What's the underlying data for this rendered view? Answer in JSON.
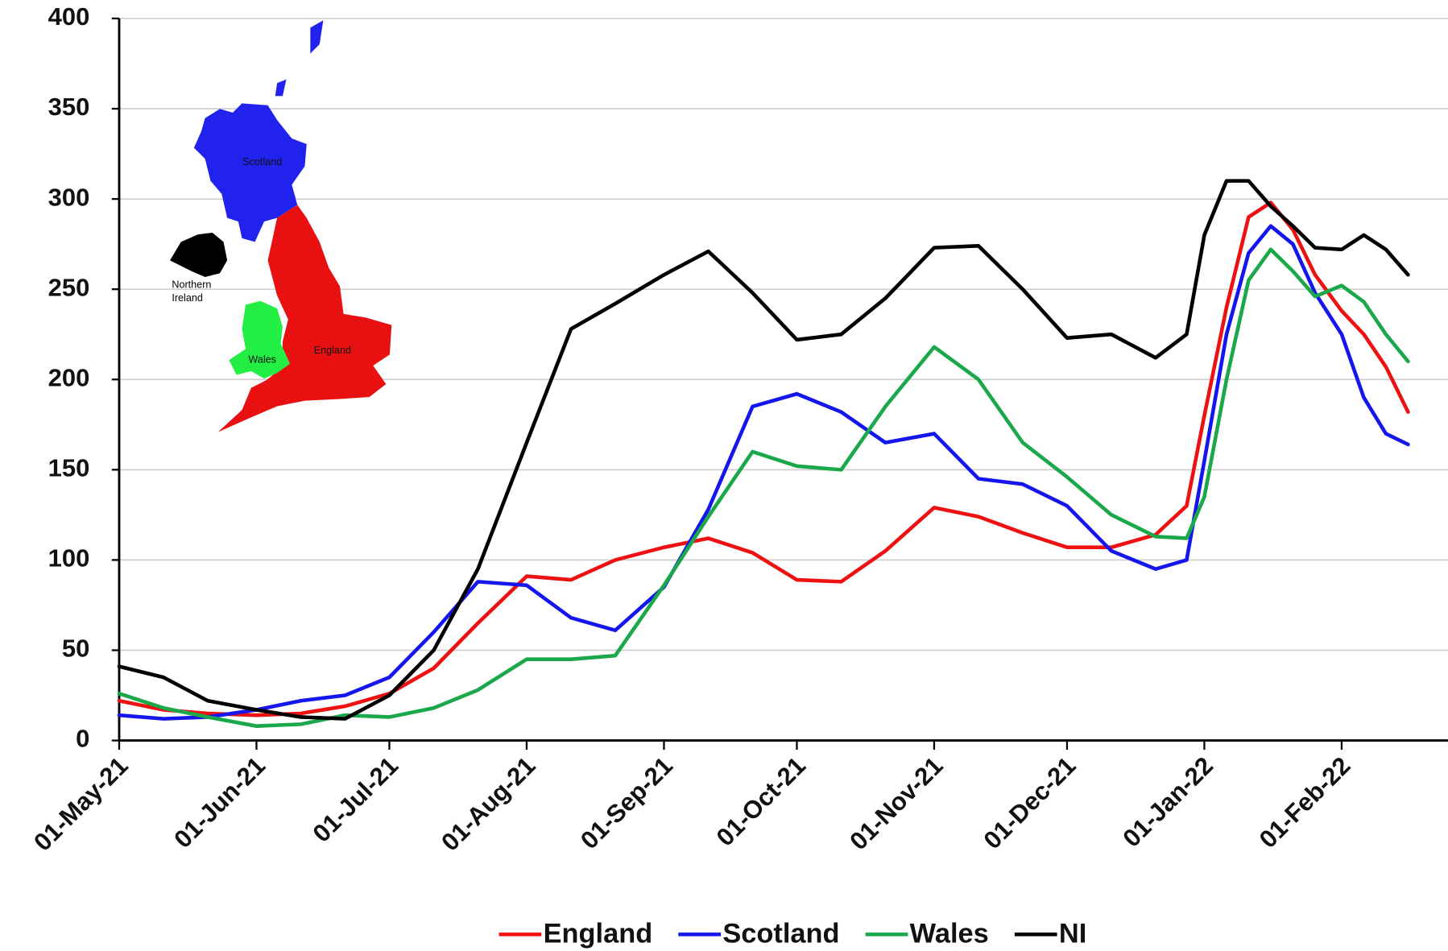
{
  "chart_data": {
    "type": "line",
    "x": [
      "2021-05-01",
      "2021-05-11",
      "2021-05-21",
      "2021-06-01",
      "2021-06-11",
      "2021-06-21",
      "2021-07-01",
      "2021-07-11",
      "2021-07-21",
      "2021-08-01",
      "2021-08-11",
      "2021-08-21",
      "2021-09-01",
      "2021-09-11",
      "2021-09-21",
      "2021-10-01",
      "2021-10-11",
      "2021-10-21",
      "2021-11-01",
      "2021-11-11",
      "2021-11-21",
      "2021-12-01",
      "2021-12-11",
      "2021-12-21",
      "2021-12-28",
      "2022-01-01",
      "2022-01-06",
      "2022-01-11",
      "2022-01-16",
      "2022-01-21",
      "2022-01-26",
      "2022-02-01",
      "2022-02-06",
      "2022-02-11",
      "2022-02-16"
    ],
    "series": [
      {
        "name": "England",
        "color": "#ee1111",
        "values": [
          22,
          17,
          15,
          14,
          15,
          19,
          26,
          40,
          65,
          91,
          89,
          100,
          107,
          112,
          104,
          89,
          88,
          105,
          129,
          124,
          115,
          107,
          107,
          114,
          130,
          180,
          240,
          290,
          298,
          283,
          258,
          238,
          225,
          207,
          182
        ]
      },
      {
        "name": "Scotland",
        "color": "#1515ee",
        "values": [
          14,
          12,
          13,
          17,
          22,
          25,
          35,
          60,
          88,
          86,
          68,
          61,
          85,
          128,
          185,
          192,
          182,
          165,
          170,
          145,
          142,
          130,
          105,
          95,
          100,
          155,
          225,
          270,
          285,
          275,
          248,
          225,
          190,
          170,
          164
        ]
      },
      {
        "name": "Wales",
        "color": "#1aa84a",
        "values": [
          26,
          18,
          13,
          8,
          9,
          14,
          13,
          18,
          28,
          45,
          45,
          47,
          86,
          124,
          160,
          152,
          150,
          185,
          218,
          200,
          165,
          146,
          125,
          113,
          112,
          135,
          200,
          255,
          272,
          260,
          246,
          252,
          243,
          225,
          210
        ]
      },
      {
        "name": "NI",
        "color": "#000000",
        "values": [
          41,
          35,
          22,
          17,
          13,
          12,
          25,
          50,
          95,
          165,
          228,
          242,
          258,
          271,
          248,
          222,
          225,
          245,
          273,
          274,
          250,
          223,
          225,
          212,
          225,
          280,
          310,
          310,
          296,
          285,
          273,
          272,
          280,
          272,
          258
        ]
      }
    ],
    "xlim": [
      "2021-05-01",
      "2022-02-25"
    ],
    "xticks": [
      {
        "value": "2021-05-01",
        "label": "01-May-21"
      },
      {
        "value": "2021-06-01",
        "label": "01-Jun-21"
      },
      {
        "value": "2021-07-01",
        "label": "01-Jul-21"
      },
      {
        "value": "2021-08-01",
        "label": "01-Aug-21"
      },
      {
        "value": "2021-09-01",
        "label": "01-Sep-21"
      },
      {
        "value": "2021-10-01",
        "label": "01-Oct-21"
      },
      {
        "value": "2021-11-01",
        "label": "01-Nov-21"
      },
      {
        "value": "2021-12-01",
        "label": "01-Dec-21"
      },
      {
        "value": "2022-01-01",
        "label": "01-Jan-22"
      },
      {
        "value": "2022-02-01",
        "label": "01-Feb-22"
      }
    ],
    "ylim": [
      0,
      400
    ],
    "yticks": [
      0,
      50,
      100,
      150,
      200,
      250,
      300,
      350,
      400
    ],
    "grid": true,
    "legend": "bottom",
    "map_labels": [
      "Scotland",
      "Northern Ireland",
      "Wales",
      "England"
    ]
  }
}
